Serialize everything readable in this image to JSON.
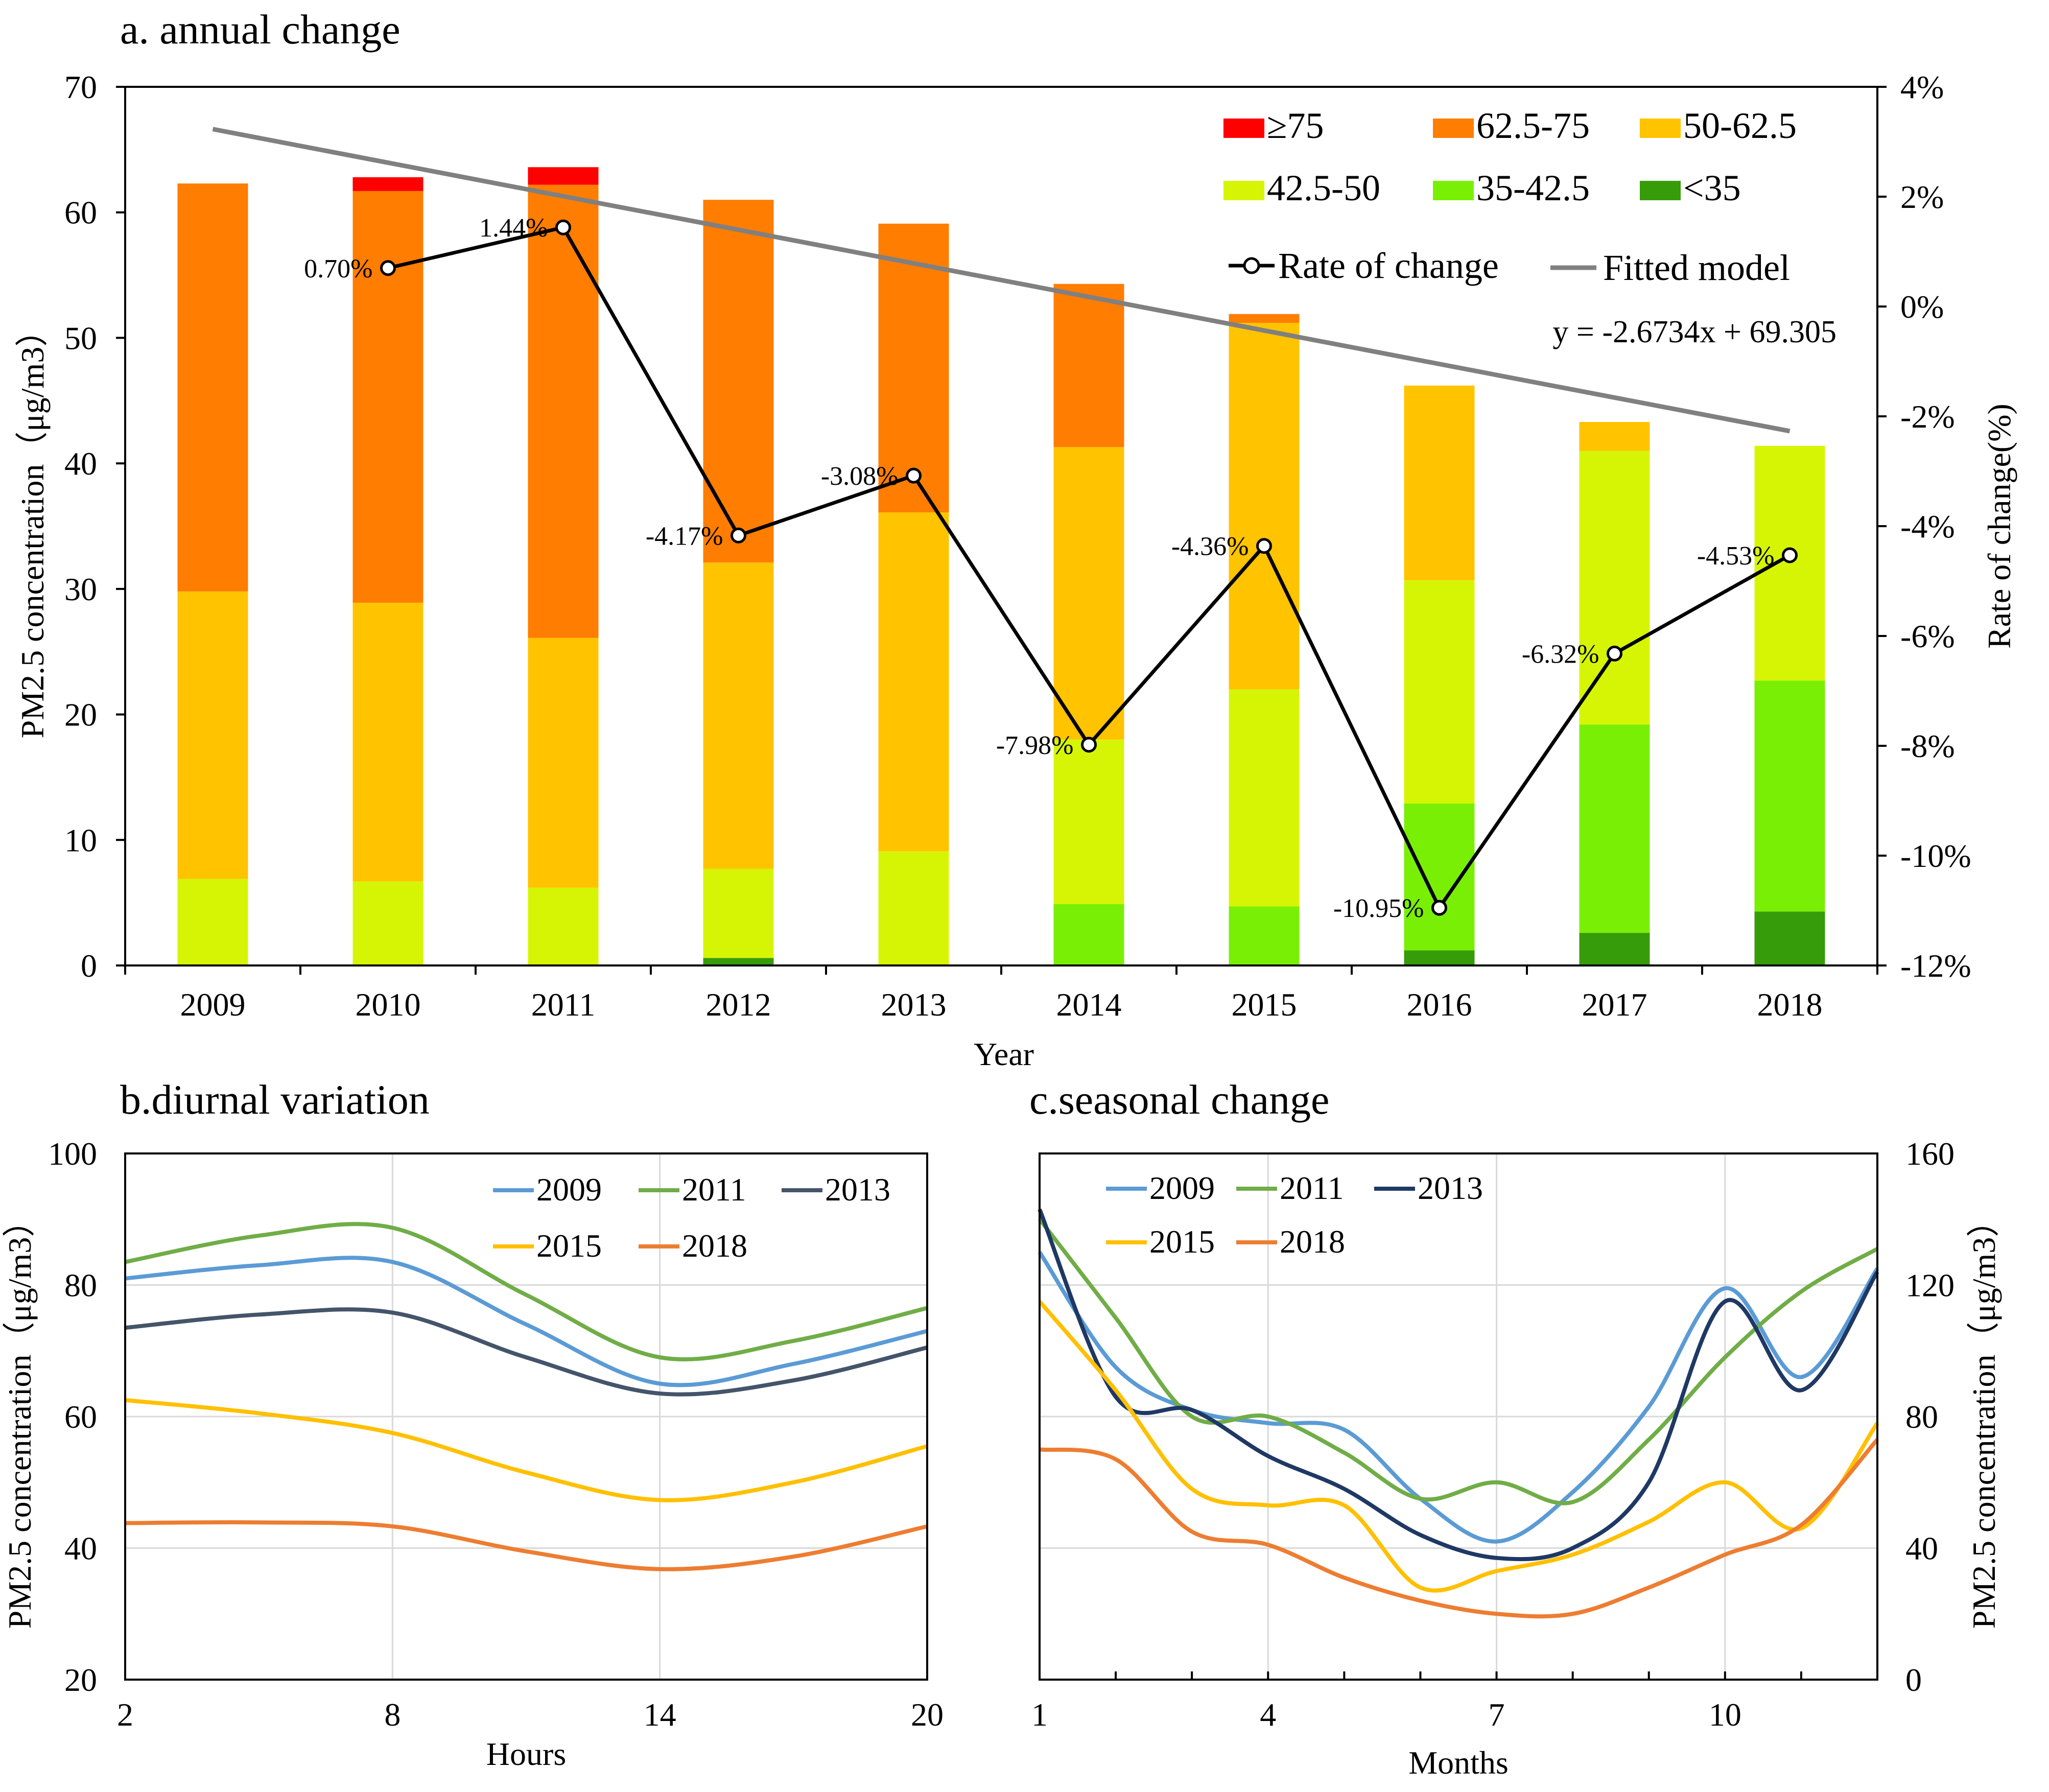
{
  "chart_data": [
    {
      "type": "bar",
      "subtype": "stacked-bar-with-line",
      "title": "a. annual change",
      "xlabel": "Year",
      "ylabel": "PM2.5 concentration（μg/m3）",
      "ylabel_right": "Rate of change(%)",
      "ylim": [
        0,
        70
      ],
      "ylim_right": [
        -12,
        4
      ],
      "yticks": [
        "0",
        "10",
        "20",
        "30",
        "40",
        "50",
        "60",
        "70"
      ],
      "yticks_right": [
        "-12%",
        "-10%",
        "-8%",
        "-6%",
        "-4%",
        "-2%",
        "0%",
        "2%",
        "4%"
      ],
      "categories": [
        "2009",
        "2010",
        "2011",
        "2012",
        "2013",
        "2014",
        "2015",
        "2016",
        "2017",
        "2018"
      ],
      "series": [
        {
          "name": "<35",
          "color": "#379c0a",
          "values": [
            0,
            0,
            0,
            0.6,
            0,
            0,
            0,
            1.2,
            2.6,
            4.3
          ]
        },
        {
          "name": "35-42.5",
          "color": "#7aef06",
          "values": [
            0,
            0,
            0,
            0,
            0,
            4.9,
            4.7,
            11.7,
            16.6,
            18.4
          ]
        },
        {
          "name": "42.5-50",
          "color": "#d6f505",
          "values": [
            6.9,
            6.7,
            6.2,
            7.1,
            9.1,
            13.1,
            17.3,
            17.8,
            21.8,
            18.7
          ]
        },
        {
          "name": "50-62.5",
          "color": "#ffc300",
          "values": [
            22.9,
            22.2,
            19.9,
            24.4,
            27.0,
            23.3,
            29.2,
            15.5,
            2.3,
            0
          ]
        },
        {
          "name": "62.5-75",
          "color": "#ff7d00",
          "values": [
            32.5,
            32.8,
            36.1,
            28.9,
            23.0,
            13.0,
            0.7,
            0,
            0,
            0
          ]
        },
        {
          "name": "≥75",
          "color": "#ff0000",
          "values": [
            0,
            1.1,
            1.4,
            0,
            0,
            0,
            0,
            0,
            0,
            0
          ]
        }
      ],
      "rate_of_change": {
        "name": "Rate of change",
        "years": [
          "2010",
          "2011",
          "2012",
          "2013",
          "2014",
          "2015",
          "2016",
          "2017",
          "2018"
        ],
        "values": [
          0.7,
          1.44,
          -4.17,
          -3.08,
          -7.98,
          -4.36,
          -10.95,
          -6.32,
          -4.53
        ],
        "labels": [
          "0.70%",
          "1.44%",
          "-4.17%",
          "-3.08%",
          "-7.98%",
          "-4.36%",
          "-10.95%",
          "-6.32%",
          "-4.53%"
        ]
      },
      "fitted_model": {
        "name": "Fitted model",
        "equation": "y = -2.6734x + 69.305",
        "slope": -2.6734,
        "intercept": 69.305,
        "color": "#808080"
      },
      "legend_rows": [
        [
          "≥75",
          "62.5-75",
          "50-62.5"
        ],
        [
          "42.5-50",
          "35-42.5",
          "<35"
        ]
      ]
    },
    {
      "type": "line",
      "title": "b.diurnal variation",
      "xlabel": "Hours",
      "ylabel": "PM2.5 concentration（μg/m3）",
      "xlim": [
        2,
        20
      ],
      "ylim": [
        20,
        100
      ],
      "xticks": [
        "2",
        "8",
        "14",
        "20"
      ],
      "yticks": [
        "20",
        "40",
        "60",
        "80",
        "100"
      ],
      "x": [
        2,
        5,
        8,
        11,
        14,
        17,
        20
      ],
      "series": [
        {
          "name": "2009",
          "color": "#5b9bd5",
          "values": [
            81,
            83,
            83.5,
            74,
            65,
            68,
            73
          ]
        },
        {
          "name": "2011",
          "color": "#70ad47",
          "values": [
            83.5,
            87.5,
            88.7,
            78.5,
            69,
            71.5,
            76.5
          ]
        },
        {
          "name": "2013",
          "color": "#44546a",
          "values": [
            73.5,
            75.5,
            75.8,
            69,
            63.5,
            65.5,
            70.5
          ]
        },
        {
          "name": "2015",
          "color": "#ffc000",
          "values": [
            62.5,
            60.5,
            57.5,
            51.5,
            47.3,
            50,
            55.5
          ]
        },
        {
          "name": "2018",
          "color": "#ed7d31",
          "values": [
            43.8,
            43.9,
            43.3,
            39.5,
            36.8,
            38.7,
            43.3
          ]
        }
      ]
    },
    {
      "type": "line",
      "title": "c.seasonal change",
      "xlabel": "Months",
      "ylabel": "PM2.5 concentration（μg/m3）",
      "xlim": [
        1,
        12
      ],
      "ylim": [
        0,
        160
      ],
      "xticks": [
        "1",
        "4",
        "7",
        "10"
      ],
      "yticks": [
        "0",
        "40",
        "80",
        "120",
        "160"
      ],
      "x": [
        1,
        2,
        3,
        4,
        5,
        6,
        7,
        8,
        9,
        10,
        11,
        12
      ],
      "series": [
        {
          "name": "2009",
          "color": "#5b9bd5",
          "values": [
            130,
            95,
            82,
            78,
            76,
            55,
            42,
            57,
            83,
            119,
            92,
            125
          ]
        },
        {
          "name": "2011",
          "color": "#70ad47",
          "values": [
            140,
            110,
            80,
            80,
            69,
            55,
            60,
            54,
            73,
            98,
            118,
            131
          ]
        },
        {
          "name": "2013",
          "color": "#1f3864",
          "values": [
            143,
            86,
            82,
            68,
            58,
            44,
            37,
            40,
            60,
            115,
            88,
            124
          ]
        },
        {
          "name": "2015",
          "color": "#ffc000",
          "values": [
            115,
            88,
            58,
            53,
            53,
            28,
            33,
            38,
            48,
            60,
            46,
            78
          ]
        },
        {
          "name": "2018",
          "color": "#ed7d31",
          "values": [
            70,
            67,
            45,
            41,
            31,
            24,
            20,
            20,
            28,
            38,
            47,
            73
          ]
        }
      ]
    }
  ]
}
